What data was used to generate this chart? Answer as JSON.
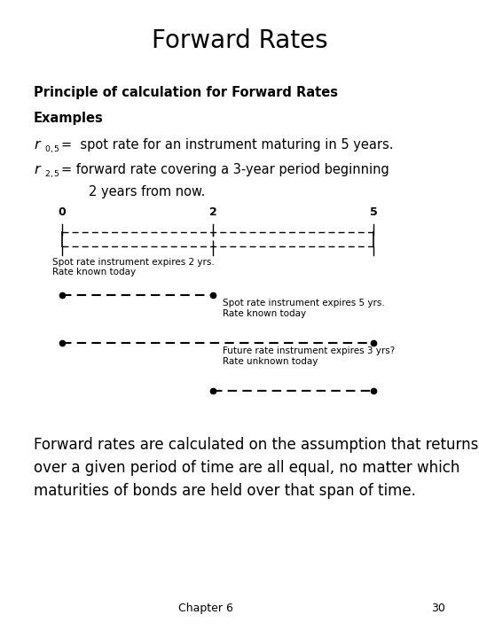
{
  "title": "Forward Rates",
  "title_fontsize": 20,
  "bg_color": "#ffffff",
  "text_color": "#000000",
  "section1": "Principle of calculation for Forward Rates",
  "section2": "Examples",
  "line1_text": "=  spot rate for an instrument maturing in 5 years.",
  "line2_text": "= forward rate covering a 3-year period beginning",
  "line2_text2": "2 years from now.",
  "timeline_labels": [
    "0",
    "2",
    "5"
  ],
  "box_label1": "Spot rate instrument expires 2 yrs.\nRate known today",
  "box_label2": "Spot rate instrument expires 5 yrs.\nRate known today",
  "box_label3": "Future rate instrument expires 3 yrs?\nRate unknown today",
  "footer_text": "Forward rates are calculated on the assumption that returns\nover a given period of time are all equal, no matter which\nmaturities of bonds are held over that span of time.",
  "chapter_text": "Chapter 6",
  "page_text": "30",
  "fontsize_section": 10.5,
  "fontsize_body": 10.5,
  "fontsize_sub": 7.5,
  "fontsize_diagram": 7.5,
  "fontsize_footer": 12,
  "fontsize_chapter": 9,
  "fontsize_timeline": 9
}
